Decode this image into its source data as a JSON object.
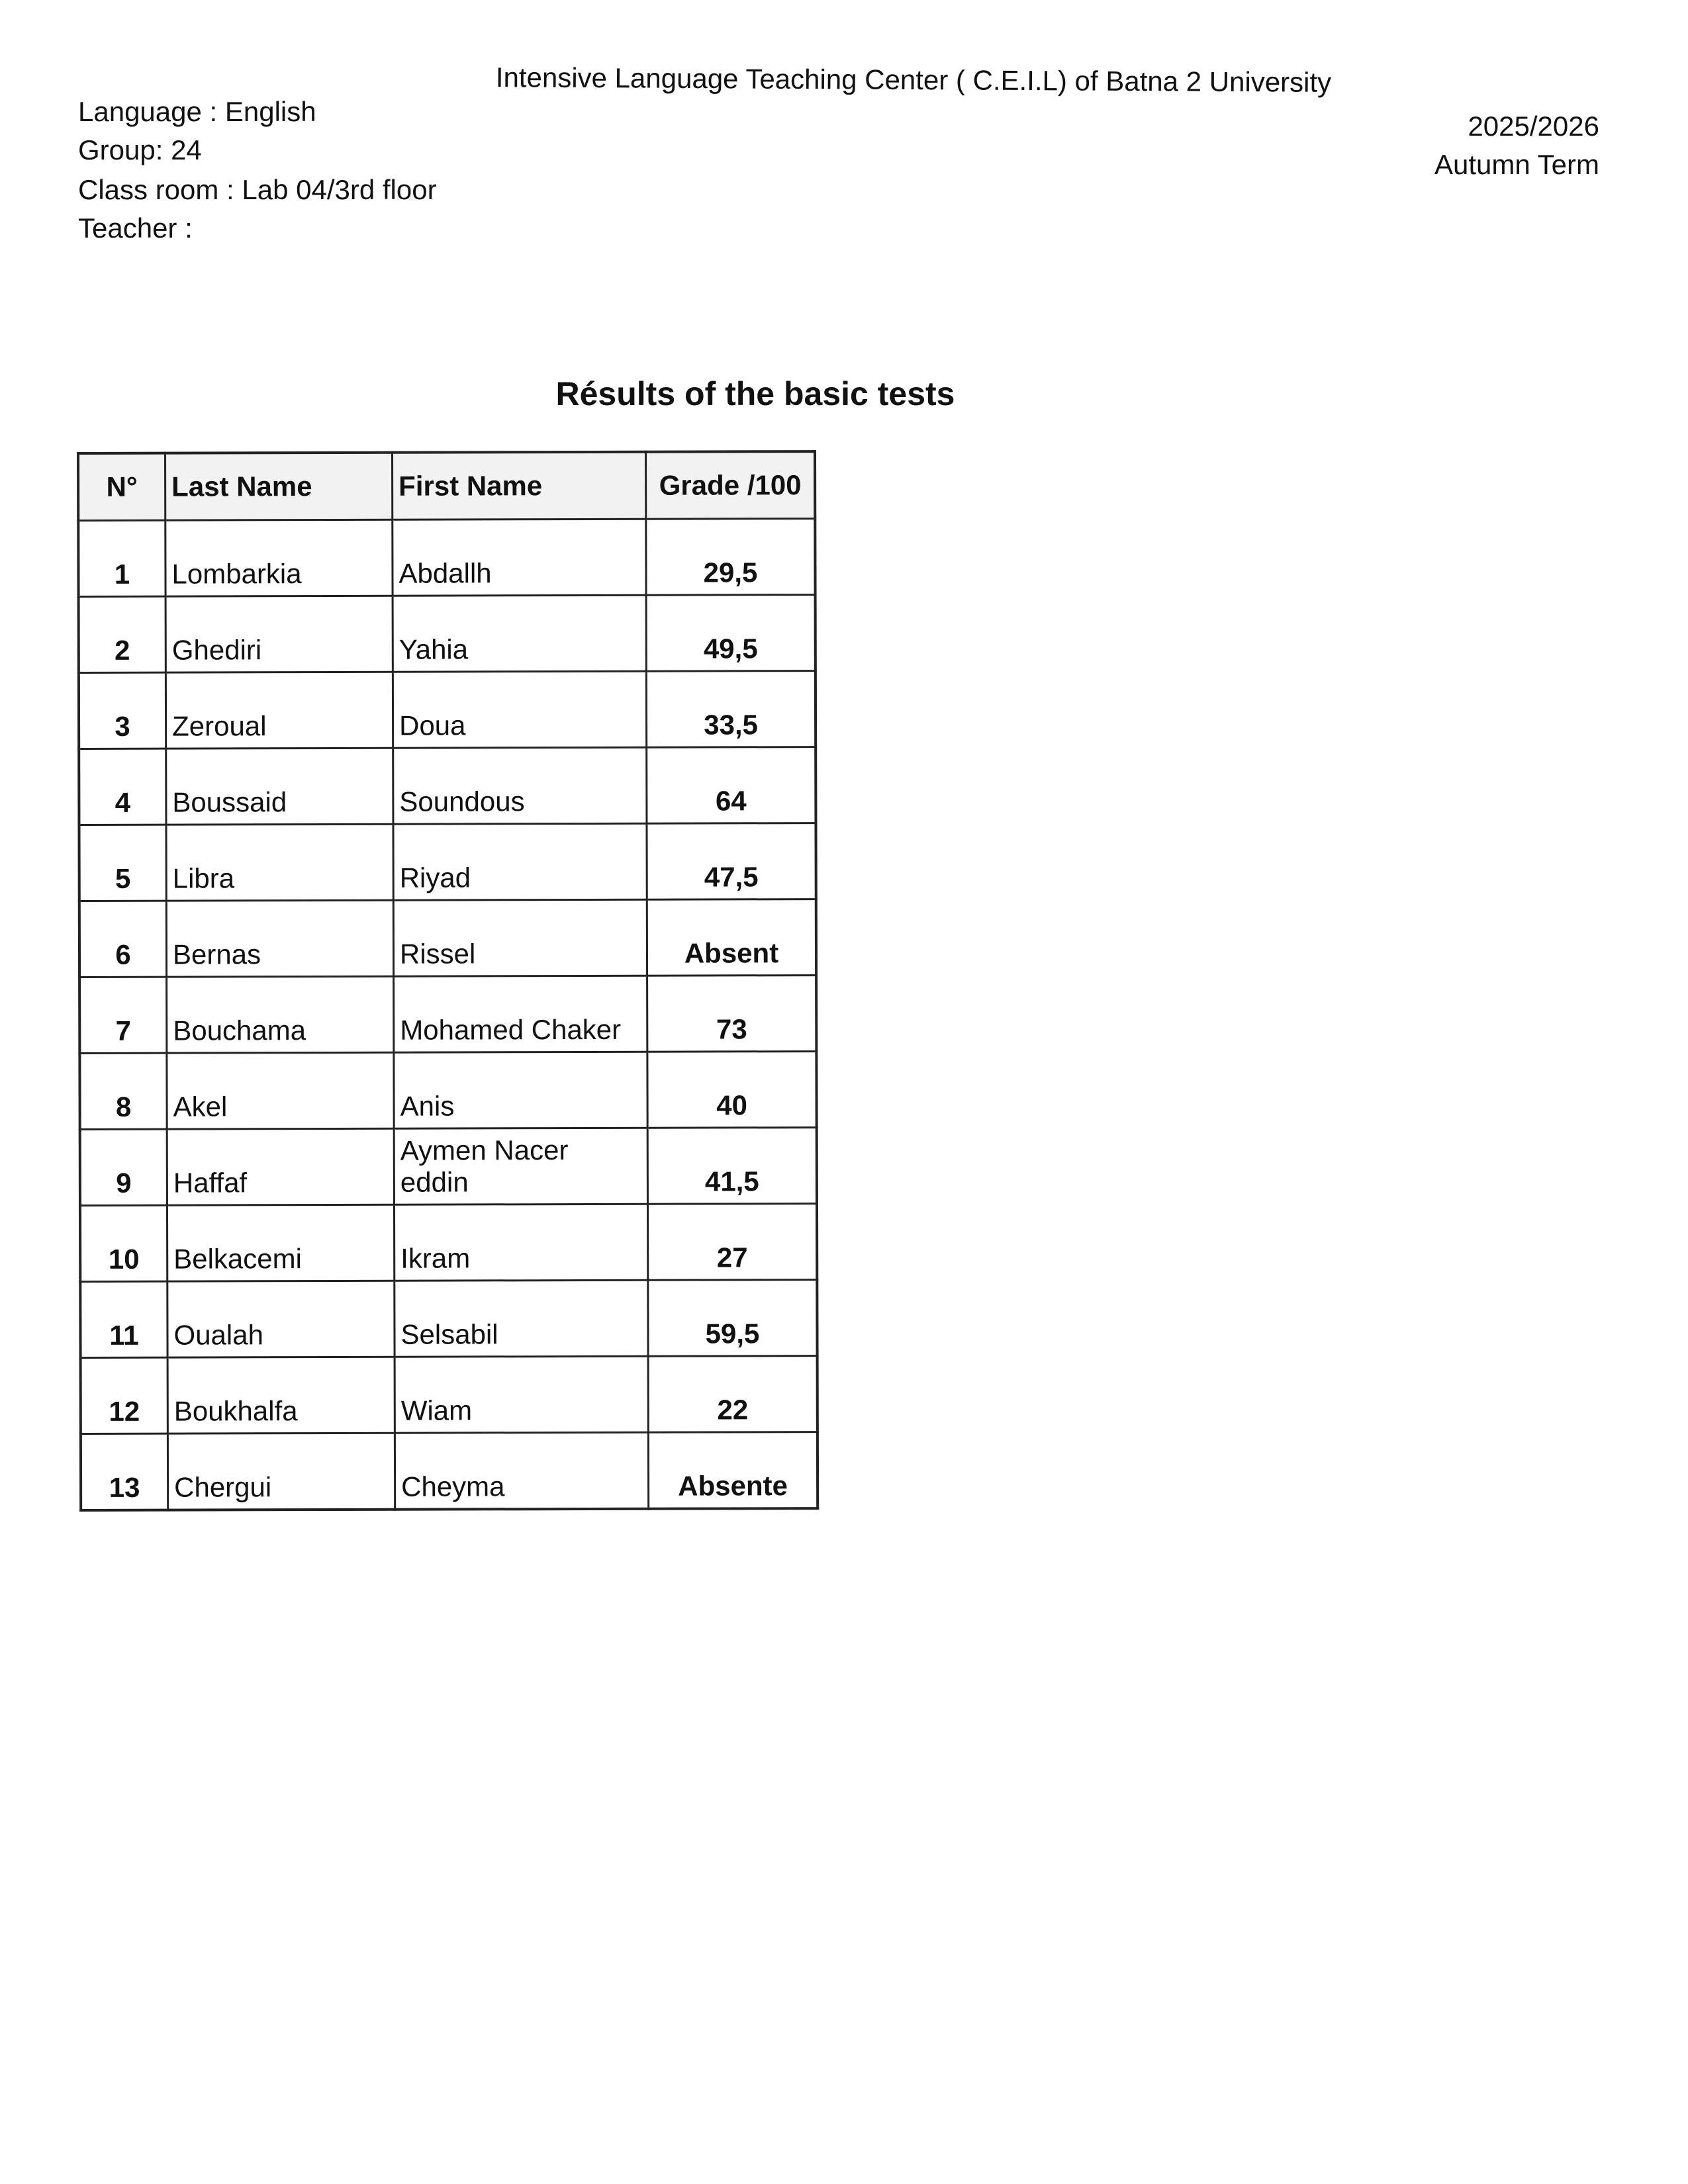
{
  "header": {
    "institution": "Intensive Language Teaching Center  ( C.E.I.L) of Batna 2 University",
    "language": "Language : English",
    "group": "Group: 24",
    "classroom": "Class room : Lab 04/3rd floor",
    "teacher": "Teacher :",
    "year": "2025/2026",
    "term": "Autumn Term"
  },
  "title": "Résults of  the basic tests",
  "table": {
    "columns": [
      "N°",
      "Last Name",
      "First Name",
      "Grade /100"
    ],
    "rows": [
      [
        "1",
        "Lombarkia",
        "Abdallh",
        "29,5"
      ],
      [
        "2",
        "Ghediri",
        "Yahia",
        "49,5"
      ],
      [
        "3",
        "Zeroual",
        "Doua",
        "33,5"
      ],
      [
        "4",
        "Boussaid",
        "Soundous",
        "64"
      ],
      [
        "5",
        "Libra",
        "Riyad",
        "47,5"
      ],
      [
        "6",
        "Bernas",
        "Rissel",
        "Absent"
      ],
      [
        "7",
        "Bouchama",
        "Mohamed Chaker",
        "73"
      ],
      [
        "8",
        "Akel",
        "Anis",
        "40"
      ],
      [
        "9",
        "Haffaf",
        "Aymen Nacer eddin",
        "41,5"
      ],
      [
        "10",
        "Belkacemi",
        "Ikram",
        "27"
      ],
      [
        "11",
        "Oualah",
        "Selsabil",
        "59,5"
      ],
      [
        "12",
        "Boukhalfa",
        "Wiam",
        "22"
      ],
      [
        "13",
        "Chergui",
        "Cheyma",
        "Absente"
      ]
    ]
  }
}
